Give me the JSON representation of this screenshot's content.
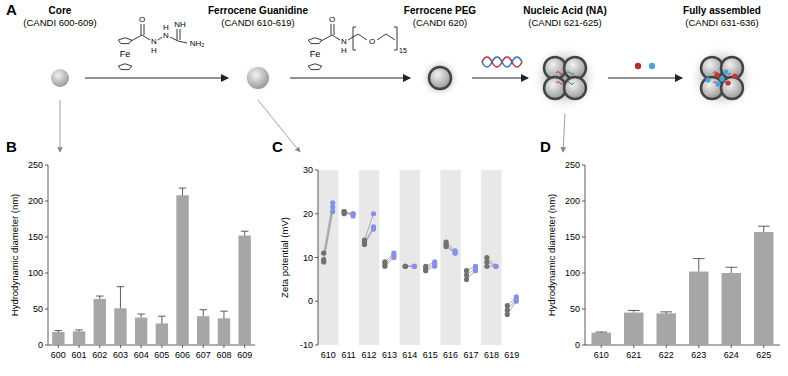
{
  "diagram": {
    "title": "A",
    "stages": [
      {
        "label": "Core",
        "sublabel": "(CANDI 600-609)"
      },
      {
        "label": "Ferrocene Guanidine",
        "sublabel": "(CANDI 610-619)"
      },
      {
        "label": "Ferrocene PEG",
        "sublabel": "(CANDI 620)"
      },
      {
        "label": "Nucleic Acid (NA)",
        "sublabel": "(CANDI 621-625)"
      },
      {
        "label": "Fully assembled",
        "sublabel": "(CANDI 631-636)"
      }
    ],
    "structures": [
      {
        "atoms": [
          "O",
          "Fe",
          "N",
          "H",
          "N",
          "H",
          "NH",
          "NH₂"
        ]
      },
      {
        "atoms": [
          "Fe",
          "O",
          "N",
          "H",
          "O",
          "15"
        ]
      }
    ]
  },
  "chart_data": [
    {
      "type": "bar",
      "title": "B",
      "y_label": "Hydrodynamic diameter (nm)",
      "categories": [
        "600",
        "601",
        "602",
        "603",
        "604",
        "605",
        "606",
        "607",
        "608",
        "609"
      ],
      "values": [
        18,
        19,
        64,
        51,
        38,
        30,
        208,
        40,
        37,
        152
      ],
      "errors": [
        2,
        2,
        4,
        30,
        5,
        10,
        10,
        9,
        10,
        6
      ],
      "color": "#a6a6a6",
      "ylim": [
        0,
        250
      ],
      "yticks": [
        0,
        50,
        100,
        150,
        200,
        250
      ],
      "grid": false
    },
    {
      "type": "scatter",
      "title": "C",
      "y_label": "Zeta potential (mV)",
      "categories": [
        "610",
        "611",
        "612",
        "613",
        "614",
        "615",
        "616",
        "617",
        "618",
        "619"
      ],
      "series": [
        {
          "color": "#707070",
          "values": [
            9,
            20.5,
            13,
            8,
            8,
            7,
            12.5,
            5,
            8,
            -3
          ]
        },
        {
          "color": "#707070",
          "values": [
            9.5,
            20.5,
            13.5,
            8.5,
            8,
            7.5,
            13,
            6,
            9,
            -2
          ]
        },
        {
          "color": "#707070",
          "values": [
            11,
            20,
            14,
            9,
            8,
            8,
            13.5,
            7,
            10,
            -1
          ]
        },
        {
          "color": "#8a8fe6",
          "values": [
            20.5,
            20,
            16.5,
            10,
            8,
            8,
            11,
            7,
            8,
            0
          ]
        },
        {
          "color": "#8a8fe6",
          "values": [
            21.5,
            19.5,
            17,
            10.5,
            8,
            8.5,
            11,
            7.5,
            8,
            0.5
          ]
        },
        {
          "color": "#8a8fe6",
          "values": [
            22.5,
            20,
            20,
            11,
            8,
            9,
            11.5,
            8,
            8,
            1
          ]
        }
      ],
      "ylim": [
        -10,
        30
      ],
      "yticks": [
        -10,
        0,
        10,
        20,
        30
      ],
      "grid": false
    },
    {
      "type": "bar",
      "title": "D",
      "y_label": "Hydrodynamic diameter (nm)",
      "categories": [
        "610",
        "621",
        "622",
        "623",
        "624",
        "625"
      ],
      "values": [
        17,
        45,
        44,
        102,
        100,
        157
      ],
      "errors": [
        1,
        3,
        2,
        18,
        8,
        8
      ],
      "color": "#a6a6a6",
      "ylim": [
        0,
        250
      ],
      "yticks": [
        0,
        50,
        100,
        150,
        200,
        250
      ],
      "grid": false
    }
  ]
}
